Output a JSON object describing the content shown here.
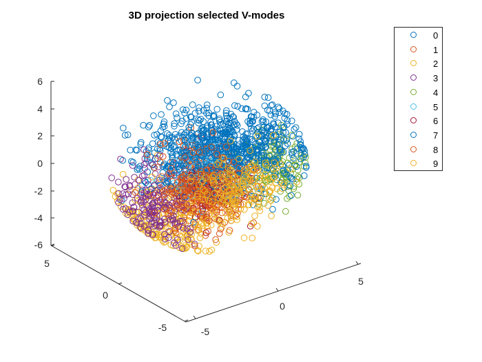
{
  "chart_data": {
    "type": "scatter",
    "title": "3D projection selected V-modes",
    "projection": "3d",
    "marker": "open-circle",
    "axes": {
      "x": {
        "lim": [
          -7,
          7
        ],
        "ticks": [
          "-5",
          "0",
          "5"
        ],
        "label": ""
      },
      "y": {
        "lim": [
          -7,
          7
        ],
        "ticks": [
          "-5",
          "0",
          "5"
        ],
        "label": ""
      },
      "z": {
        "lim": [
          -6,
          6
        ],
        "ticks": [
          "-6",
          "-4",
          "-2",
          "0",
          "2",
          "4",
          "6"
        ],
        "label": ""
      }
    },
    "grid": false,
    "legend_position": "top-right",
    "series": [
      {
        "name": "0",
        "color": "#0072BD",
        "center": [
          -1.0,
          1.0,
          2.5
        ],
        "spread": [
          2.0,
          1.5,
          1.0
        ],
        "count": 260
      },
      {
        "name": "1",
        "color": "#D95319",
        "center": [
          0.0,
          -1.0,
          -2.0
        ],
        "spread": [
          0.7,
          0.6,
          1.6
        ],
        "count": 190
      },
      {
        "name": "2",
        "color": "#EDB120",
        "center": [
          -2.5,
          0.0,
          -3.2
        ],
        "spread": [
          1.8,
          1.5,
          1.2
        ],
        "count": 240
      },
      {
        "name": "3",
        "color": "#7E2F8E",
        "center": [
          -3.6,
          0.5,
          -1.0
        ],
        "spread": [
          1.0,
          1.2,
          1.4
        ],
        "count": 200
      },
      {
        "name": "4",
        "color": "#77AC30",
        "center": [
          3.5,
          1.0,
          -1.0
        ],
        "spread": [
          0.7,
          1.0,
          1.2
        ],
        "count": 150
      },
      {
        "name": "5",
        "color": "#4DBEEE",
        "center": [
          0.0,
          0.0,
          -0.5
        ],
        "spread": [
          1.0,
          0.8,
          1.0
        ],
        "count": 120
      },
      {
        "name": "6",
        "color": "#A2142F",
        "center": [
          2.0,
          -1.5,
          -3.5
        ],
        "spread": [
          1.0,
          0.8,
          0.8
        ],
        "count": 140
      },
      {
        "name": "7",
        "color": "#0072BD",
        "center": [
          0.5,
          1.5,
          1.5
        ],
        "spread": [
          2.2,
          1.5,
          1.3
        ],
        "count": 600
      },
      {
        "name": "8",
        "color": "#D95319",
        "center": [
          0.8,
          -1.0,
          -3.0
        ],
        "spread": [
          1.2,
          0.9,
          1.2
        ],
        "count": 200
      },
      {
        "name": "9",
        "color": "#EDB120",
        "center": [
          2.5,
          -0.5,
          -3.2
        ],
        "spread": [
          1.5,
          1.0,
          1.1
        ],
        "count": 200
      }
    ]
  }
}
